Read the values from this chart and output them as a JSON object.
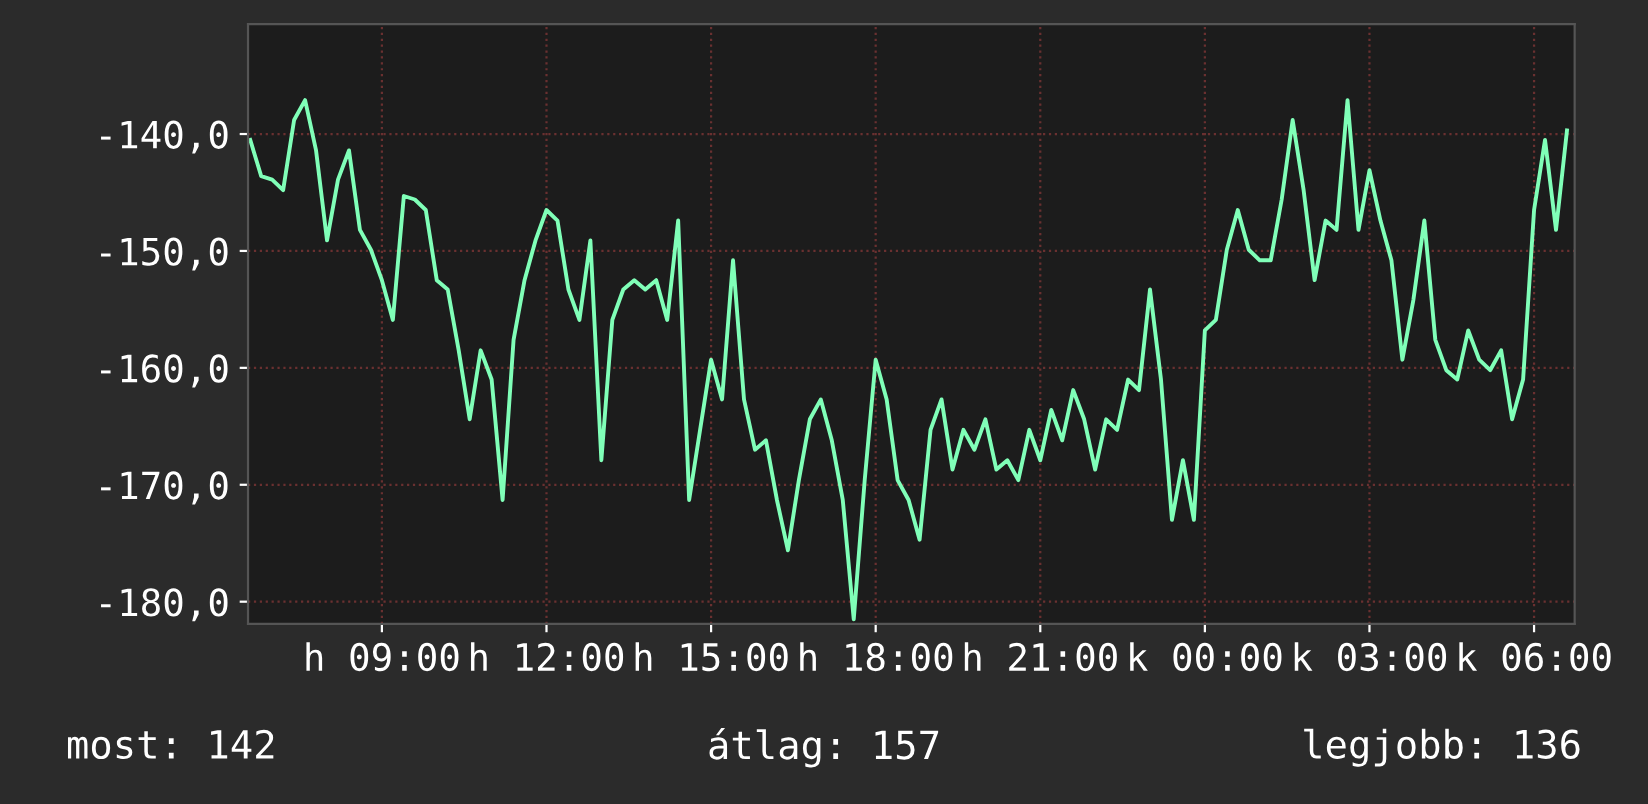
{
  "chart_data": {
    "type": "line",
    "categories": [
      null,
      null,
      null,
      null,
      null,
      null,
      null,
      null,
      null,
      null,
      null,
      null,
      "h 09:00",
      null,
      null,
      null,
      null,
      null,
      null,
      null,
      null,
      null,
      null,
      null,
      null,
      null,
      null,
      "h 12:00",
      null,
      null,
      null,
      null,
      null,
      null,
      null,
      null,
      null,
      null,
      null,
      null,
      null,
      null,
      "h 15:00",
      null,
      null,
      null,
      null,
      null,
      null,
      null,
      null,
      null,
      null,
      null,
      null,
      null,
      null,
      "h 18:00",
      null,
      null,
      null,
      null,
      null,
      null,
      null,
      null,
      null,
      null,
      null,
      null,
      null,
      null,
      "h 21:00",
      null,
      null,
      null,
      null,
      null,
      null,
      null,
      null,
      null,
      null,
      null,
      null,
      null,
      null,
      "k 00:00",
      null,
      null,
      null,
      null,
      null,
      null,
      null,
      null,
      null,
      null,
      null,
      null,
      null,
      null,
      "k 03:00",
      null,
      null,
      null,
      null,
      null,
      null,
      null,
      null,
      null,
      null,
      null,
      null,
      null,
      null,
      "k 06:00",
      null,
      null,
      null
    ],
    "series": [
      {
        "color": "#80ffb8",
        "values": [
          -140.5,
          -143.6,
          -143.9,
          -144.8,
          -138.8,
          -137.1,
          -141.4,
          -149.1,
          -143.9,
          -141.4,
          -148.2,
          -149.9,
          -152.5,
          -155.9,
          -145.3,
          -145.6,
          -146.5,
          -152.5,
          -153.3,
          -158.5,
          -164.4,
          -158.5,
          -161.0,
          -171.3,
          -157.6,
          -152.5,
          -149.1,
          -146.5,
          -147.4,
          -153.3,
          -155.9,
          -149.1,
          -167.9,
          -155.9,
          -153.3,
          -152.5,
          -153.3,
          -152.5,
          -155.9,
          -147.4,
          -171.3,
          -165.3,
          -159.3,
          -162.7,
          -150.8,
          -162.7,
          -167.0,
          -166.2,
          -171.3,
          -175.6,
          -169.6,
          -164.4,
          -162.7,
          -166.2,
          -171.3,
          -181.5,
          -169.6,
          -159.3,
          -162.7,
          -169.6,
          -171.3,
          -174.7,
          -165.3,
          -162.7,
          -168.7,
          -165.3,
          -167.0,
          -164.4,
          -168.7,
          -167.9,
          -169.6,
          -165.3,
          -167.9,
          -163.6,
          -166.2,
          -161.9,
          -164.4,
          -168.7,
          -164.4,
          -165.3,
          -161.0,
          -161.9,
          -153.3,
          -161.0,
          -173.0,
          -167.9,
          -173.0,
          -156.8,
          -155.9,
          -149.9,
          -146.5,
          -149.9,
          -150.8,
          -150.8,
          -145.6,
          -138.8,
          -144.8,
          -152.5,
          -147.4,
          -148.2,
          -137.1,
          -148.2,
          -143.1,
          -147.4,
          -150.8,
          -159.3,
          -154.2,
          -147.4,
          -157.6,
          -160.2,
          -161.0,
          -156.8,
          -159.3,
          -160.2,
          -158.5,
          -164.4,
          -161.0,
          -146.5,
          -140.5,
          -148.2,
          -139.7
        ]
      }
    ],
    "ylim": [
      -181.9,
      -130.6
    ],
    "yticks": [
      {
        "value": -180,
        "label": "-180,0"
      },
      {
        "value": -170,
        "label": "-170,0"
      },
      {
        "value": -160,
        "label": "-160,0"
      },
      {
        "value": -150,
        "label": "-150,0"
      },
      {
        "value": -140,
        "label": "-140,0"
      }
    ],
    "grid": true,
    "annotations": [
      "most: 142",
      "átlag: 157",
      "legjobb: 136"
    ]
  }
}
